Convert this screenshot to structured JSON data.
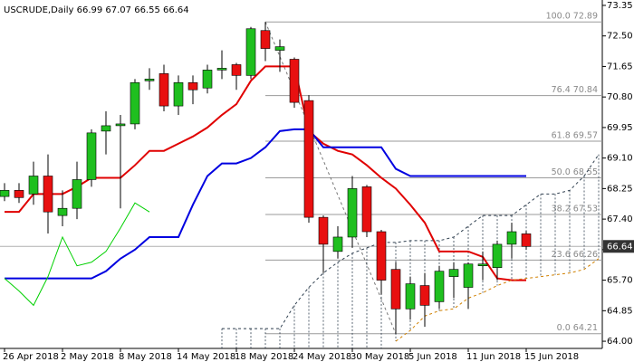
{
  "chart_data": {
    "type": "candlestick",
    "title": "USCRUDE,Daily 66.99 67.07 66.55 66.64",
    "categories": [
      "26 Apr 2018",
      null,
      null,
      null,
      "2 May 2018",
      null,
      null,
      null,
      "8 May 2018",
      null,
      null,
      null,
      "14 May 2018",
      null,
      null,
      null,
      "18 May 2018",
      null,
      null,
      null,
      "24 May 2018",
      null,
      null,
      null,
      "30 May 2018",
      null,
      null,
      null,
      "5 Jun 2018",
      null,
      null,
      null,
      "11 Jun 2018",
      null,
      null,
      null,
      "15 Jun 2018",
      null,
      null,
      null,
      null,
      null
    ],
    "open": [
      68.03,
      68.2,
      68.1,
      68.6,
      67.5,
      67.7,
      68.5,
      69.85,
      70.0,
      70.05,
      71.25,
      71.45,
      70.55,
      71.2,
      71.05,
      71.55,
      71.7,
      71.4,
      72.65,
      72.1,
      71.85,
      70.7,
      67.45,
      66.5,
      66.9,
      68.3,
      67.05,
      66.0,
      64.9,
      65.55,
      65.1,
      65.8,
      65.5,
      66.1,
      66.05,
      66.7,
      66.99,
      null,
      null,
      null,
      null,
      null
    ],
    "high": [
      68.4,
      68.4,
      69.0,
      69.2,
      68.2,
      69.0,
      69.9,
      70.4,
      70.3,
      71.3,
      71.6,
      71.7,
      71.4,
      71.4,
      71.7,
      72.1,
      71.75,
      72.75,
      72.89,
      72.4,
      71.9,
      70.85,
      67.5,
      67.2,
      68.6,
      68.35,
      67.1,
      66.2,
      65.8,
      65.9,
      66.1,
      66.2,
      66.2,
      66.5,
      66.8,
      67.3,
      67.07,
      null,
      null,
      null,
      null,
      null
    ],
    "low": [
      67.9,
      67.85,
      67.8,
      67.0,
      67.2,
      67.4,
      68.3,
      69.2,
      67.7,
      69.9,
      71.0,
      70.4,
      70.3,
      70.6,
      70.9,
      71.3,
      71.0,
      71.3,
      71.8,
      71.5,
      70.5,
      67.3,
      65.9,
      66.3,
      66.6,
      66.9,
      65.3,
      64.21,
      64.6,
      64.4,
      64.9,
      65.2,
      64.9,
      65.7,
      65.7,
      66.3,
      66.55,
      null,
      null,
      null,
      null,
      null
    ],
    "close": [
      68.2,
      68.0,
      68.6,
      67.6,
      67.7,
      68.5,
      69.8,
      70.0,
      70.05,
      71.2,
      71.3,
      70.55,
      71.2,
      71.0,
      71.55,
      71.6,
      71.4,
      72.7,
      72.15,
      72.2,
      70.65,
      67.45,
      66.7,
      66.9,
      68.25,
      67.05,
      65.7,
      64.9,
      65.6,
      65.0,
      65.95,
      66.0,
      66.15,
      66.15,
      66.7,
      67.05,
      66.64,
      null,
      null,
      null,
      null,
      null
    ],
    "up_color": "#1fbf1f",
    "down_color": "#e81010",
    "series": [
      {
        "color": "#e00000",
        "width": 2,
        "dash": false,
        "values": [
          67.6,
          67.6,
          68.1,
          68.1,
          68.1,
          68.3,
          68.55,
          68.55,
          68.55,
          68.9,
          69.3,
          69.3,
          69.5,
          69.7,
          69.95,
          70.3,
          70.6,
          71.25,
          71.65,
          71.65,
          71.65,
          69.85,
          69.5,
          69.3,
          69.2,
          68.9,
          68.55,
          68.25,
          67.8,
          67.3,
          66.5,
          66.5,
          66.5,
          66.35,
          65.75,
          65.7,
          65.7,
          null,
          null,
          null,
          null,
          null
        ]
      },
      {
        "color": "#0000e0",
        "width": 2,
        "dash": false,
        "values": [
          65.75,
          65.75,
          65.75,
          65.75,
          65.75,
          65.75,
          65.75,
          65.95,
          66.3,
          66.55,
          66.9,
          66.9,
          66.9,
          67.8,
          68.6,
          68.95,
          68.95,
          69.1,
          69.4,
          69.85,
          69.9,
          69.9,
          69.4,
          69.4,
          69.4,
          69.4,
          69.4,
          68.8,
          68.6,
          68.6,
          68.6,
          68.6,
          68.6,
          68.6,
          68.6,
          68.6,
          68.6,
          null,
          null,
          null,
          null,
          null
        ]
      },
      {
        "color": "#00d000",
        "width": 1,
        "dash": false,
        "values": [
          65.75,
          65.4,
          65.0,
          65.8,
          66.9,
          66.1,
          66.2,
          66.5,
          67.15,
          67.85,
          67.6,
          null,
          null,
          null,
          null,
          null,
          null,
          null,
          null,
          null,
          null,
          null,
          null,
          null,
          null,
          null,
          null,
          null,
          null,
          null,
          null,
          null,
          null,
          null,
          null,
          null,
          null,
          null,
          null,
          null,
          null,
          null
        ]
      },
      {
        "color": "#2f3f4f",
        "width": 1,
        "dash": true,
        "values": [
          null,
          null,
          null,
          null,
          null,
          null,
          null,
          null,
          null,
          null,
          null,
          null,
          null,
          null,
          null,
          64.35,
          64.35,
          64.35,
          64.35,
          64.35,
          65.0,
          65.5,
          65.9,
          66.2,
          66.45,
          66.6,
          66.75,
          66.75,
          66.8,
          66.8,
          66.8,
          66.9,
          67.2,
          67.5,
          67.5,
          67.5,
          67.8,
          68.1,
          68.1,
          68.2,
          68.6,
          69.2
        ]
      },
      {
        "color": "#d08000",
        "width": 1,
        "dash": true,
        "values": [
          null,
          null,
          null,
          null,
          null,
          null,
          null,
          null,
          null,
          null,
          null,
          null,
          null,
          null,
          null,
          null,
          null,
          null,
          null,
          null,
          null,
          null,
          null,
          null,
          null,
          null,
          null,
          64.0,
          64.3,
          64.7,
          64.85,
          64.9,
          65.2,
          65.35,
          65.55,
          65.7,
          65.75,
          65.8,
          65.85,
          65.9,
          66.0,
          66.3
        ]
      }
    ],
    "fibonacci": [
      {
        "label": "100.0 72.89",
        "value": 72.89
      },
      {
        "label": "76.4 70.84",
        "value": 70.84
      },
      {
        "label": "61.8 69.57",
        "value": 69.57
      },
      {
        "label": "50.0 68.55",
        "value": 68.55
      },
      {
        "label": "38.2 67.53",
        "value": 67.53
      },
      {
        "label": "23.6 66.26",
        "value": 66.26
      },
      {
        "label": "0.0 64.21",
        "value": 64.21
      }
    ],
    "ylim": [
      63.8,
      73.5
    ],
    "yticks": [
      {
        "value": 64,
        "label": "64.00"
      },
      64.85,
      {
        "value": 65.7,
        "label": "65.70"
      },
      66.55,
      {
        "value": 67.4,
        "label": "67.40"
      },
      68.25,
      {
        "value": 69.1,
        "label": "69.10"
      },
      69.95,
      {
        "value": 70.8,
        "label": "70.80"
      },
      71.65,
      {
        "value": 72.5,
        "label": "72.50"
      },
      73.35
    ]
  }
}
